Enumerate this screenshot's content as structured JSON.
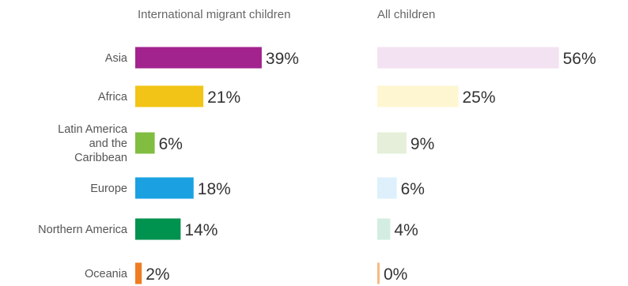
{
  "chart_data": [
    {
      "type": "bar",
      "title": "International migrant children",
      "categories": [
        "Asia",
        "Africa",
        "Latin America and the Caribbean",
        "Europe",
        "Northern America",
        "Oceania"
      ],
      "values": [
        39,
        21,
        6,
        18,
        14,
        2
      ],
      "value_labels": [
        "39%",
        "21%",
        "6%",
        "18%",
        "14%",
        "2%"
      ],
      "unit": "%",
      "orientation": "horizontal",
      "colors": [
        "#a2238e",
        "#f2c417",
        "#80bd41",
        "#1ba1e2",
        "#00924f",
        "#ee7d21"
      ]
    },
    {
      "type": "bar",
      "title": "All children",
      "categories": [
        "Asia",
        "Africa",
        "Latin America and the Caribbean",
        "Europe",
        "Northern America",
        "Oceania"
      ],
      "values": [
        56,
        25,
        9,
        6,
        4,
        0
      ],
      "value_labels": [
        "56%",
        "25%",
        "9%",
        "6%",
        "4%",
        "0%"
      ],
      "unit": "%",
      "orientation": "horizontal",
      "colors": [
        "#f3e3f2",
        "#fdf6d1",
        "#e5efda",
        "#ddf0fb",
        "#d4ede2",
        "#f7ba85"
      ]
    }
  ],
  "category_labels": [
    [
      "Asia"
    ],
    [
      "Africa"
    ],
    [
      "Latin America",
      "and the",
      "Caribbean"
    ],
    [
      "Europe"
    ],
    [
      "Northern America"
    ],
    [
      "Oceania"
    ]
  ]
}
